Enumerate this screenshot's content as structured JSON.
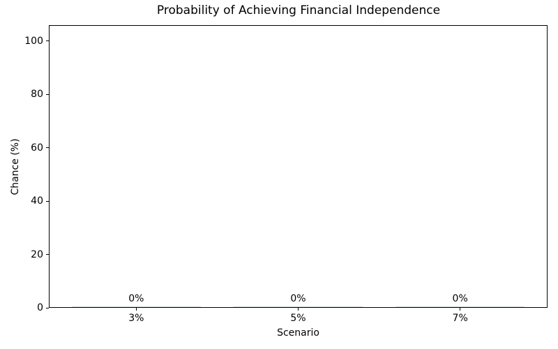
{
  "chart_data": {
    "type": "bar",
    "title": "Probability of Achieving Financial Independence",
    "xlabel": "Scenario",
    "ylabel": "Chance (%)",
    "categories": [
      "3%",
      "5%",
      "7%"
    ],
    "values": [
      0,
      0,
      0
    ],
    "bar_value_labels": [
      "0%",
      "0%",
      "0%"
    ],
    "yticks": [
      0,
      20,
      40,
      60,
      80,
      100
    ],
    "ylim": [
      0,
      106
    ],
    "xlim": [
      -0.54,
      2.54
    ],
    "bar_width": 0.8,
    "grid": false,
    "legend": "none",
    "bar_color": "#d2dcd2",
    "axis_color": "#000000",
    "text_color": "#000000"
  }
}
